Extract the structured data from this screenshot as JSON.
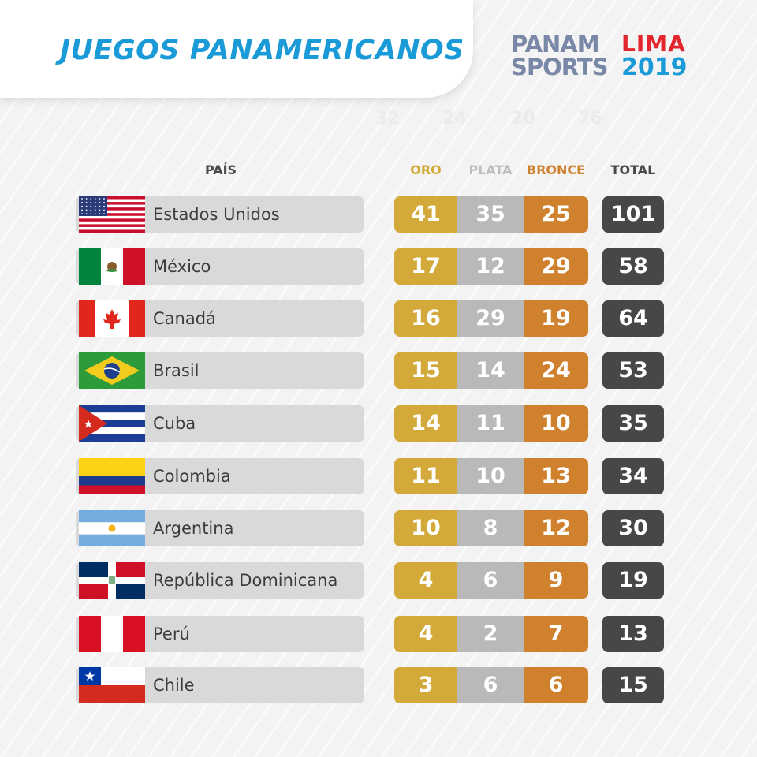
{
  "header": {
    "title": "JUEGOS PANAMERICANOS",
    "logo_panam_line1": "PANAM",
    "logo_panam_line2": "SPORTS",
    "logo_lima_line1": "LIMA",
    "logo_lima_line2": "2019"
  },
  "ghost_numbers": [
    "32",
    "24",
    "20",
    "76"
  ],
  "columns": {
    "country": "PAÍS",
    "gold": "ORO",
    "silver": "PLATA",
    "bronze": "BRONCE",
    "total": "TOTAL"
  },
  "colors": {
    "gold": "#d3aa3a",
    "silver": "#b9b9b9",
    "bronze": "#d0812e",
    "total": "#474747",
    "title": "#1a9ad6"
  },
  "rows": [
    {
      "country": "Estados Unidos",
      "flag": "usa-flag",
      "gold": "41",
      "silver": "35",
      "bronze": "25",
      "total": "101"
    },
    {
      "country": "México",
      "flag": "mexico-flag",
      "gold": "17",
      "silver": "12",
      "bronze": "29",
      "total": "58"
    },
    {
      "country": "Canadá",
      "flag": "canada-flag",
      "gold": "16",
      "silver": "29",
      "bronze": "19",
      "total": "64"
    },
    {
      "country": "Brasil",
      "flag": "brazil-flag",
      "gold": "15",
      "silver": "14",
      "bronze": "24",
      "total": "53"
    },
    {
      "country": "Cuba",
      "flag": "cuba-flag",
      "gold": "14",
      "silver": "11",
      "bronze": "10",
      "total": "35"
    },
    {
      "country": "Colombia",
      "flag": "colombia-flag",
      "gold": "11",
      "silver": "10",
      "bronze": "13",
      "total": "34"
    },
    {
      "country": "Argentina",
      "flag": "argentina-flag",
      "gold": "10",
      "silver": "8",
      "bronze": "12",
      "total": "30"
    },
    {
      "country": "República Dominicana",
      "flag": "dominican-republic-flag",
      "gold": "4",
      "silver": "6",
      "bronze": "9",
      "total": "19"
    },
    {
      "country": "Perú",
      "flag": "peru-flag",
      "gold": "4",
      "silver": "2",
      "bronze": "7",
      "total": "13"
    },
    {
      "country": "Chile",
      "flag": "chile-flag",
      "gold": "3",
      "silver": "6",
      "bronze": "6",
      "total": "15"
    }
  ]
}
